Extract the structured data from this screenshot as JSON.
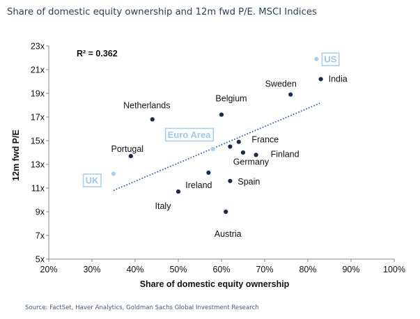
{
  "title": "Share of domestic equity ownership and 12m fwd P/E. MSCI Indices",
  "source": "Source: FactSet, Haver Analytics, Goldman Sachs Global Investment Research",
  "chart_data": {
    "type": "scatter",
    "xlabel": "Share of domestic equity ownership",
    "ylabel": "12m fwd P/E",
    "xlim": [
      20,
      100
    ],
    "ylim": [
      5,
      23
    ],
    "x_ticks": [
      "20%",
      "30%",
      "40%",
      "50%",
      "60%",
      "70%",
      "80%",
      "90%",
      "100%"
    ],
    "y_ticks": [
      "5x",
      "7x",
      "9x",
      "11x",
      "13x",
      "15x",
      "17x",
      "19x",
      "21x",
      "23x"
    ],
    "annotation": "R² = 0.362",
    "trendline": {
      "style": "dotted",
      "color": "#2b5aa0",
      "x": [
        35,
        83
      ],
      "y": [
        10.8,
        18.2
      ]
    },
    "colors": {
      "point": "#1a2c4e",
      "highlight": "#a9d0ec"
    },
    "points": [
      {
        "name": "US",
        "x": 82,
        "y": 21.9,
        "highlight": true
      },
      {
        "name": "India",
        "x": 83,
        "y": 20.2
      },
      {
        "name": "Sweden",
        "x": 76,
        "y": 18.9
      },
      {
        "name": "Belgium",
        "x": 60,
        "y": 17.2
      },
      {
        "name": "Netherlands",
        "x": 44,
        "y": 16.8
      },
      {
        "name": "Euro Area",
        "x": 58,
        "y": 14.3,
        "highlight": true
      },
      {
        "name": "France",
        "x": 64,
        "y": 14.9
      },
      {
        "name": "Finland",
        "x": 68,
        "y": 13.8
      },
      {
        "name": "Germany",
        "x": 62,
        "y": 14.5
      },
      {
        "name": "Germany",
        "x": 65,
        "y": 14.0,
        "unlabeled": true
      },
      {
        "name": "Portugal",
        "x": 39,
        "y": 13.7
      },
      {
        "name": "UK",
        "x": 35,
        "y": 12.2,
        "highlight": true
      },
      {
        "name": "Ireland",
        "x": 57,
        "y": 12.3
      },
      {
        "name": "Spain",
        "x": 62,
        "y": 11.6
      },
      {
        "name": "Italy",
        "x": 50,
        "y": 10.7
      },
      {
        "name": "Austria",
        "x": 61,
        "y": 9.0
      }
    ]
  }
}
